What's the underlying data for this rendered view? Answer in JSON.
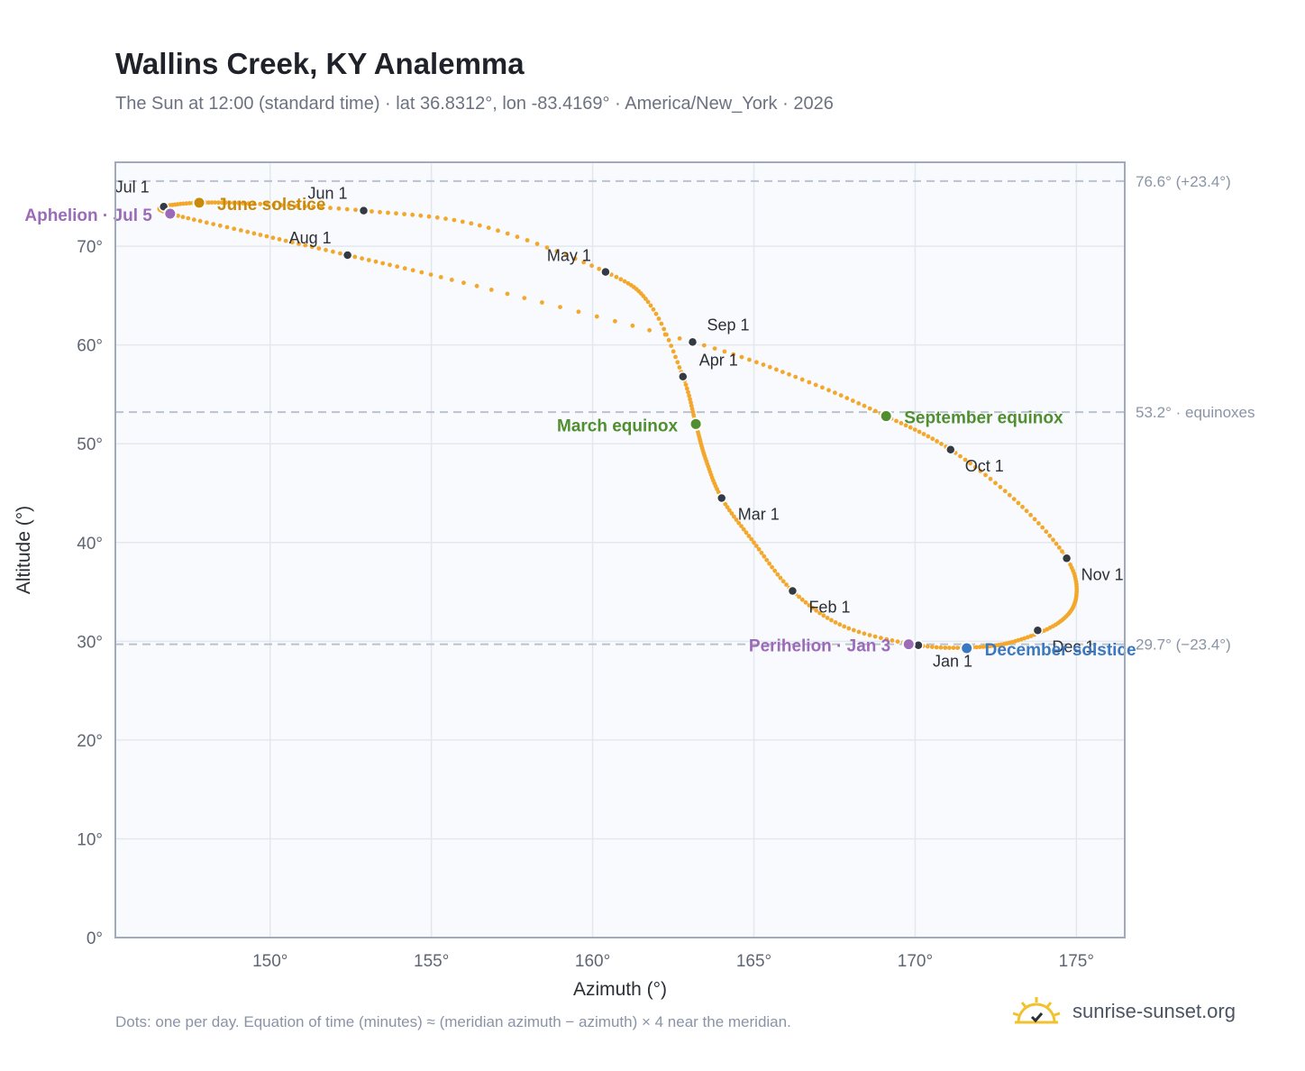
{
  "header": {
    "title": "Wallins Creek, KY Analemma",
    "subtitle": "The Sun at 12:00 (standard time) · lat 36.8312°, lon -83.4169° · America/New_York · 2026"
  },
  "footer": {
    "note": "Dots: one per day. Equation of time (minutes) ≈ (meridian azimuth − azimuth) × 4 near the meridian.",
    "brand": "sunrise-sunset.org"
  },
  "colors": {
    "curve": "#f3a82c",
    "month_dot": "#343a44",
    "june_solstice": "#c98a0c",
    "equinox": "#4f8f2f",
    "december_solstice": "#3a78c2",
    "apsis": "#9b6bb8",
    "reference_line": "#b9c3cf"
  },
  "chart_data": {
    "type": "scatter",
    "xlabel": "Azimuth (°)",
    "ylabel": "Altitude (°)",
    "xlim": [
      145.2,
      176.5
    ],
    "ylim": [
      0,
      78.5
    ],
    "x_ticks": [
      150,
      155,
      160,
      165,
      170,
      175
    ],
    "x_tick_labels": [
      "150°",
      "155°",
      "160°",
      "165°",
      "170°",
      "175°"
    ],
    "y_ticks": [
      0,
      10,
      20,
      30,
      40,
      50,
      60,
      70
    ],
    "y_tick_labels": [
      "0°",
      "10°",
      "20°",
      "30°",
      "40°",
      "50°",
      "60°",
      "70°"
    ],
    "grid": true,
    "reference_lines": [
      {
        "y": 76.6,
        "label": "76.6° (+23.4°)"
      },
      {
        "y": 53.2,
        "label": "53.2° · equinoxes"
      },
      {
        "y": 29.7,
        "label": "29.7° (−23.4°)"
      }
    ],
    "analemma_path": [
      [
        170.1,
        29.6
      ],
      [
        171.9,
        29.4
      ],
      [
        173.2,
        30.1
      ],
      [
        174.5,
        32.0
      ],
      [
        175.0,
        34.6
      ],
      [
        174.7,
        38.4
      ],
      [
        173.2,
        44.0
      ],
      [
        171.1,
        49.4
      ],
      [
        169.1,
        52.8
      ],
      [
        166.5,
        56.5
      ],
      [
        163.1,
        60.3
      ],
      [
        156.0,
        66.3
      ],
      [
        152.4,
        69.1
      ],
      [
        149.5,
        71.3
      ],
      [
        146.9,
        73.3
      ],
      [
        146.7,
        74.0
      ],
      [
        147.8,
        74.4
      ],
      [
        149.5,
        74.3
      ],
      [
        152.9,
        73.6
      ],
      [
        156.5,
        72.1
      ],
      [
        160.4,
        67.4
      ],
      [
        161.8,
        64.0
      ],
      [
        162.8,
        56.8
      ],
      [
        163.2,
        52.0
      ],
      [
        163.5,
        48.5
      ],
      [
        164.0,
        44.5
      ],
      [
        165.0,
        40.0
      ],
      [
        166.2,
        35.1
      ],
      [
        167.8,
        31.5
      ],
      [
        170.1,
        29.6
      ]
    ],
    "month_markers": [
      {
        "label": "Jan 1",
        "x": 170.1,
        "y": 29.6
      },
      {
        "label": "Feb 1",
        "x": 166.2,
        "y": 35.1
      },
      {
        "label": "Mar 1",
        "x": 164.0,
        "y": 44.5
      },
      {
        "label": "Apr 1",
        "x": 162.8,
        "y": 56.8
      },
      {
        "label": "May 1",
        "x": 160.4,
        "y": 67.4
      },
      {
        "label": "Jun 1",
        "x": 152.9,
        "y": 73.6
      },
      {
        "label": "Jul 1",
        "x": 146.7,
        "y": 74.0
      },
      {
        "label": "Aug 1",
        "x": 152.4,
        "y": 69.1
      },
      {
        "label": "Sep 1",
        "x": 163.1,
        "y": 60.3
      },
      {
        "label": "Oct 1",
        "x": 171.1,
        "y": 49.4
      },
      {
        "label": "Nov 1",
        "x": 174.7,
        "y": 38.4
      },
      {
        "label": "Dec 1",
        "x": 173.8,
        "y": 31.1
      }
    ],
    "events": [
      {
        "label": "June solstice",
        "x": 147.8,
        "y": 74.4,
        "color_key": "june_solstice"
      },
      {
        "label": "Aphelion · Jul 5",
        "x": 146.9,
        "y": 73.3,
        "color_key": "apsis"
      },
      {
        "label": "March equinox",
        "x": 163.2,
        "y": 52.0,
        "color_key": "equinox"
      },
      {
        "label": "September equinox",
        "x": 169.1,
        "y": 52.8,
        "color_key": "equinox"
      },
      {
        "label": "Perihelion · Jan 3",
        "x": 169.8,
        "y": 29.7,
        "color_key": "apsis"
      },
      {
        "label": "December solstice",
        "x": 171.6,
        "y": 29.3,
        "color_key": "december_solstice"
      }
    ]
  }
}
